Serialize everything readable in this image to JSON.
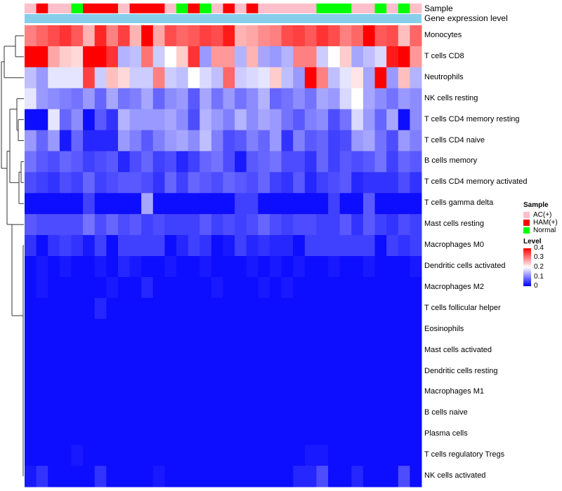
{
  "chart_data": {
    "type": "heatmap",
    "annotation_titles": [
      "Sample",
      "Gene expression level"
    ],
    "sample_groups": [
      "AC(+)",
      "HAM(+)",
      "Normal"
    ],
    "sample_colors": {
      "AC(+)": "#ffc0cb",
      "HAM(+)": "#ff0000",
      "Normal": "#00ff00"
    },
    "sample_annotation": [
      "AC(+)",
      "HAM(+)",
      "AC(+)",
      "AC(+)",
      "Normal",
      "HAM(+)",
      "HAM(+)",
      "HAM(+)",
      "AC(+)",
      "HAM(+)",
      "HAM(+)",
      "HAM(+)",
      "AC(+)",
      "Normal",
      "HAM(+)",
      "Normal",
      "AC(+)",
      "HAM(+)",
      "AC(+)",
      "HAM(+)",
      "AC(+)",
      "AC(+)",
      "AC(+)",
      "AC(+)",
      "AC(+)",
      "Normal",
      "Normal",
      "Normal",
      "AC(+)",
      "AC(+)",
      "Normal",
      "AC(+)",
      "Normal",
      "AC(+)"
    ],
    "gene_expression_bar_color": "#87ceeb",
    "rows": [
      "Monocytes",
      "T cells CD8",
      "Neutrophils",
      "NK cells resting",
      "T cells CD4 memory resting",
      "T cells CD4 naive",
      "B cells memory",
      "T cells CD4 memory activated",
      "T cells gamma delta",
      "Mast cells resting",
      "Macrophages M0",
      "Dendritic cells activated",
      "Macrophages M2",
      "T cells follicular helper",
      "Eosinophils",
      "Mast cells activated",
      "Dendritic cells resting",
      "Macrophages M1",
      "B cells naive",
      "Plasma cells",
      "T cells regulatory  Tregs",
      "NK cells activated"
    ],
    "values": [
      [
        0.3,
        0.32,
        0.34,
        0.36,
        0.33,
        0.26,
        0.37,
        0.3,
        0.35,
        0.26,
        0.4,
        0.27,
        0.34,
        0.32,
        0.33,
        0.35,
        0.34,
        0.38,
        0.26,
        0.27,
        0.29,
        0.3,
        0.34,
        0.35,
        0.33,
        0.36,
        0.34,
        0.3,
        0.32,
        0.4,
        0.33,
        0.34,
        0.25,
        0.32
      ],
      [
        0.4,
        0.4,
        0.27,
        0.24,
        0.23,
        0.4,
        0.4,
        0.36,
        0.14,
        0.15,
        0.31,
        0.16,
        0.2,
        0.24,
        0.36,
        0.12,
        0.28,
        0.28,
        0.14,
        0.26,
        0.13,
        0.12,
        0.14,
        0.3,
        0.3,
        0.16,
        0.2,
        0.24,
        0.13,
        0.15,
        0.17,
        0.38,
        0.4,
        0.28
      ],
      [
        0.15,
        0.12,
        0.18,
        0.18,
        0.18,
        0.35,
        0.16,
        0.25,
        0.23,
        0.16,
        0.16,
        0.3,
        0.16,
        0.15,
        0.2,
        0.17,
        0.15,
        0.32,
        0.16,
        0.17,
        0.18,
        0.24,
        0.15,
        0.12,
        0.4,
        0.3,
        0.15,
        0.18,
        0.22,
        0.13,
        0.4,
        0.12,
        0.25,
        0.14
      ],
      [
        0.18,
        0.12,
        0.11,
        0.1,
        0.09,
        0.12,
        0.08,
        0.13,
        0.09,
        0.1,
        0.13,
        0.08,
        0.11,
        0.12,
        0.07,
        0.13,
        0.09,
        0.12,
        0.09,
        0.11,
        0.14,
        0.08,
        0.09,
        0.11,
        0.09,
        0.13,
        0.12,
        0.17,
        0.2,
        0.13,
        0.11,
        0.09,
        0.12,
        0.11
      ],
      [
        0.01,
        0.01,
        0.18,
        0.08,
        0.11,
        0.01,
        0.07,
        0.04,
        0.14,
        0.12,
        0.12,
        0.12,
        0.13,
        0.11,
        0.06,
        0.14,
        0.12,
        0.1,
        0.14,
        0.11,
        0.13,
        0.12,
        0.09,
        0.07,
        0.1,
        0.11,
        0.06,
        0.09,
        0.17,
        0.12,
        0.08,
        0.13,
        0.01,
        0.11
      ],
      [
        0.12,
        0.08,
        0.12,
        0.02,
        0.08,
        0.03,
        0.03,
        0.03,
        0.12,
        0.1,
        0.07,
        0.1,
        0.12,
        0.13,
        0.11,
        0.15,
        0.1,
        0.06,
        0.07,
        0.1,
        0.08,
        0.12,
        0.04,
        0.1,
        0.07,
        0.08,
        0.05,
        0.06,
        0.12,
        0.13,
        0.09,
        0.06,
        0.12,
        0.1
      ],
      [
        0.09,
        0.07,
        0.06,
        0.08,
        0.07,
        0.05,
        0.06,
        0.07,
        0.03,
        0.06,
        0.08,
        0.05,
        0.06,
        0.03,
        0.05,
        0.08,
        0.09,
        0.06,
        0.02,
        0.07,
        0.08,
        0.09,
        0.06,
        0.06,
        0.04,
        0.08,
        0.05,
        0.07,
        0.06,
        0.07,
        0.09,
        0.05,
        0.08,
        0.07
      ],
      [
        0.06,
        0.05,
        0.04,
        0.06,
        0.05,
        0.08,
        0.05,
        0.06,
        0.07,
        0.07,
        0.06,
        0.04,
        0.08,
        0.05,
        0.08,
        0.07,
        0.06,
        0.08,
        0.07,
        0.06,
        0.08,
        0.05,
        0.04,
        0.07,
        0.03,
        0.05,
        0.06,
        0.07,
        0.03,
        0.04,
        0.04,
        0.04,
        0.06,
        0.04
      ],
      [
        0.01,
        0.01,
        0.01,
        0.01,
        0.01,
        0.05,
        0.01,
        0.01,
        0.01,
        0.01,
        0.13,
        0.01,
        0.01,
        0.01,
        0.01,
        0.01,
        0.01,
        0.01,
        0.05,
        0.05,
        0.01,
        0.01,
        0.01,
        0.01,
        0.01,
        0.01,
        0.05,
        0.01,
        0.01,
        0.07,
        0.01,
        0.01,
        0.01,
        0.01
      ],
      [
        0.07,
        0.06,
        0.06,
        0.06,
        0.06,
        0.09,
        0.06,
        0.08,
        0.06,
        0.07,
        0.05,
        0.06,
        0.05,
        0.05,
        0.05,
        0.07,
        0.05,
        0.06,
        0.05,
        0.06,
        0.08,
        0.06,
        0.05,
        0.06,
        0.06,
        0.05,
        0.05,
        0.07,
        0.04,
        0.07,
        0.05,
        0.04,
        0.06,
        0.05
      ],
      [
        0.04,
        0.01,
        0.04,
        0.05,
        0.04,
        0.02,
        0.05,
        0.01,
        0.05,
        0.05,
        0.05,
        0.05,
        0.01,
        0.03,
        0.05,
        0.04,
        0.01,
        0.02,
        0.05,
        0.03,
        0.04,
        0.03,
        0.03,
        0.01,
        0.05,
        0.05,
        0.05,
        0.05,
        0.05,
        0.05,
        0.01,
        0.05,
        0.04,
        0.05
      ],
      [
        0.01,
        0.02,
        0.01,
        0.02,
        0.01,
        0.01,
        0.02,
        0.01,
        0.03,
        0.02,
        0.01,
        0.01,
        0.02,
        0.01,
        0.01,
        0.02,
        0.01,
        0.01,
        0.01,
        0.02,
        0.01,
        0.02,
        0.01,
        0.02,
        0.01,
        0.01,
        0.02,
        0.01,
        0.01,
        0.02,
        0.01,
        0.01,
        0.01,
        0.02
      ],
      [
        0.01,
        0.02,
        0.01,
        0.01,
        0.01,
        0.01,
        0.01,
        0.02,
        0.01,
        0.01,
        0.03,
        0.01,
        0.01,
        0.01,
        0.01,
        0.01,
        0.02,
        0.01,
        0.01,
        0.01,
        0.02,
        0.01,
        0.02,
        0.01,
        0.01,
        0.01,
        0.01,
        0.01,
        0.01,
        0.01,
        0.01,
        0.01,
        0.01,
        0.01
      ],
      [
        0.01,
        0.01,
        0.01,
        0.01,
        0.01,
        0.01,
        0.03,
        0.01,
        0.01,
        0.01,
        0.01,
        0.01,
        0.01,
        0.01,
        0.01,
        0.01,
        0.01,
        0.01,
        0.01,
        0.01,
        0.01,
        0.01,
        0.01,
        0.01,
        0.01,
        0.01,
        0.01,
        0.01,
        0.01,
        0.01,
        0.01,
        0.01,
        0.01,
        0.01
      ],
      [
        0.01,
        0.01,
        0.01,
        0.01,
        0.01,
        0.01,
        0.01,
        0.01,
        0.01,
        0.01,
        0.01,
        0.01,
        0.01,
        0.01,
        0.01,
        0.01,
        0.01,
        0.01,
        0.01,
        0.01,
        0.01,
        0.01,
        0.01,
        0.01,
        0.01,
        0.01,
        0.01,
        0.01,
        0.01,
        0.01,
        0.01,
        0.01,
        0.01,
        0.01
      ],
      [
        0.01,
        0.01,
        0.01,
        0.01,
        0.01,
        0.01,
        0.01,
        0.01,
        0.01,
        0.01,
        0.01,
        0.01,
        0.01,
        0.01,
        0.01,
        0.01,
        0.01,
        0.01,
        0.01,
        0.01,
        0.01,
        0.01,
        0.01,
        0.01,
        0.01,
        0.01,
        0.01,
        0.01,
        0.01,
        0.01,
        0.01,
        0.01,
        0.01,
        0.01
      ],
      [
        0.01,
        0.01,
        0.01,
        0.01,
        0.01,
        0.01,
        0.01,
        0.01,
        0.01,
        0.01,
        0.01,
        0.01,
        0.01,
        0.01,
        0.01,
        0.01,
        0.01,
        0.01,
        0.01,
        0.01,
        0.01,
        0.01,
        0.01,
        0.01,
        0.01,
        0.01,
        0.01,
        0.01,
        0.01,
        0.01,
        0.01,
        0.01,
        0.01,
        0.01
      ],
      [
        0.01,
        0.01,
        0.01,
        0.01,
        0.01,
        0.01,
        0.01,
        0.01,
        0.01,
        0.01,
        0.01,
        0.01,
        0.01,
        0.01,
        0.01,
        0.01,
        0.01,
        0.01,
        0.01,
        0.01,
        0.01,
        0.01,
        0.01,
        0.01,
        0.01,
        0.01,
        0.01,
        0.01,
        0.01,
        0.01,
        0.01,
        0.01,
        0.01,
        0.01
      ],
      [
        0.01,
        0.01,
        0.01,
        0.01,
        0.01,
        0.01,
        0.01,
        0.01,
        0.01,
        0.01,
        0.01,
        0.01,
        0.01,
        0.01,
        0.01,
        0.01,
        0.01,
        0.01,
        0.01,
        0.01,
        0.01,
        0.01,
        0.01,
        0.01,
        0.01,
        0.01,
        0.01,
        0.01,
        0.01,
        0.01,
        0.01,
        0.01,
        0.01,
        0.01
      ],
      [
        0.01,
        0.01,
        0.01,
        0.01,
        0.01,
        0.01,
        0.01,
        0.01,
        0.01,
        0.01,
        0.01,
        0.01,
        0.01,
        0.01,
        0.01,
        0.01,
        0.01,
        0.01,
        0.01,
        0.01,
        0.01,
        0.01,
        0.01,
        0.01,
        0.01,
        0.01,
        0.01,
        0.01,
        0.01,
        0.01,
        0.01,
        0.01,
        0.01,
        0.01
      ],
      [
        0.01,
        0.01,
        0.01,
        0.01,
        0.02,
        0.01,
        0.01,
        0.01,
        0.01,
        0.01,
        0.01,
        0.01,
        0.01,
        0.01,
        0.01,
        0.01,
        0.01,
        0.01,
        0.01,
        0.01,
        0.01,
        0.01,
        0.01,
        0.01,
        0.02,
        0.02,
        0.01,
        0.01,
        0.01,
        0.01,
        0.01,
        0.01,
        0.01,
        0.01
      ],
      [
        0.02,
        0.04,
        0.01,
        0.01,
        0.01,
        0.01,
        0.04,
        0.01,
        0.01,
        0.01,
        0.01,
        0.02,
        0.01,
        0.01,
        0.01,
        0.01,
        0.01,
        0.01,
        0.01,
        0.01,
        0.01,
        0.01,
        0.01,
        0.03,
        0.03,
        0.06,
        0.01,
        0.01,
        0.03,
        0.01,
        0.01,
        0.01,
        0.06,
        0.01
      ]
    ],
    "legend": {
      "sample_title": "Sample",
      "level_title": "Level",
      "level_ticks": [
        "0.4",
        "0.3",
        "0.2",
        "0.1",
        "0"
      ],
      "range": [
        0,
        0.4
      ],
      "low_color": "#0000ff",
      "mid_color": "#ffffff",
      "high_color": "#ff0000"
    }
  }
}
